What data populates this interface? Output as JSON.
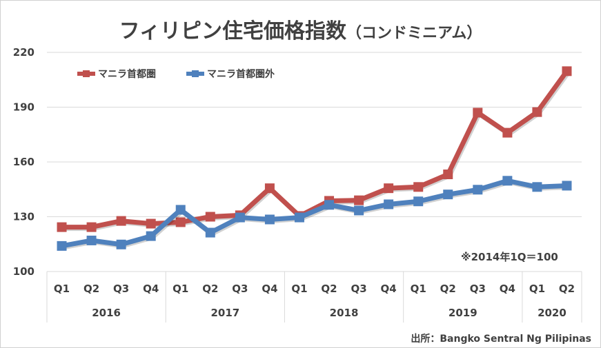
{
  "chart_data": {
    "type": "line",
    "title": "フィリピン住宅価格指数",
    "subtitle": "（コンドミニアム）",
    "categories": [
      "Q1",
      "Q2",
      "Q3",
      "Q4",
      "Q1",
      "Q2",
      "Q3",
      "Q4",
      "Q1",
      "Q2",
      "Q3",
      "Q4",
      "Q1",
      "Q2",
      "Q3",
      "Q4",
      "Q1",
      "Q2"
    ],
    "year_groups": [
      {
        "label": "2016",
        "count": 4
      },
      {
        "label": "2017",
        "count": 4
      },
      {
        "label": "2018",
        "count": 4
      },
      {
        "label": "2019",
        "count": 4
      },
      {
        "label": "2020",
        "count": 2
      }
    ],
    "ylim": [
      100,
      220
    ],
    "yticks": [
      "100",
      "130",
      "160",
      "190",
      "220"
    ],
    "grid": true,
    "legend_position": "top-left",
    "series": [
      {
        "name": "マニラ首都圏",
        "color": "#c0504d",
        "values": [
          124.3,
          124.3,
          127.7,
          126.2,
          127.0,
          130.0,
          130.8,
          145.6,
          130.4,
          138.7,
          139.0,
          145.6,
          146.3,
          153.2,
          187.0,
          176.0,
          187.3,
          209.7
        ]
      },
      {
        "name": "マニラ首都圏外",
        "color": "#4f81bd",
        "values": [
          114.0,
          117.0,
          114.8,
          119.4,
          133.8,
          121.3,
          129.6,
          128.5,
          129.6,
          136.5,
          133.4,
          136.8,
          138.4,
          142.2,
          144.8,
          149.7,
          146.3,
          147.0
        ]
      }
    ],
    "note": "※2014年1Q＝100",
    "source": "出所：Bangko Sentral Ng Pilipinas"
  }
}
